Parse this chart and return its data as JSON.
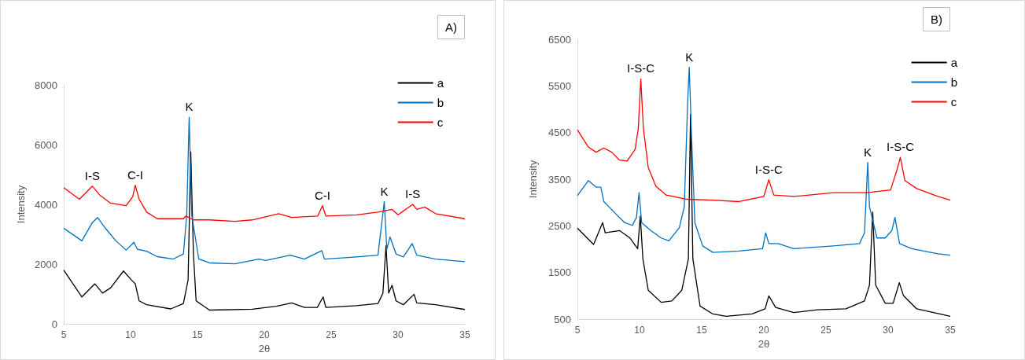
{
  "chart_data": [
    {
      "type": "line",
      "title": "A)",
      "xlabel": "2θ",
      "ylabel": "Intensity",
      "xlim": [
        5,
        35
      ],
      "xticks": [
        5,
        10,
        15,
        20,
        25,
        30,
        35
      ],
      "ylim": [
        0,
        8000
      ],
      "yticks": [
        0,
        2000,
        4000,
        6000,
        8000
      ],
      "legend": "top right",
      "annotations": [
        {
          "text": "I-S",
          "x": 7.14,
          "y": 4610
        },
        {
          "text": "C-I",
          "x": 10.35,
          "y": 4640
        },
        {
          "text": "K",
          "x": 14.38,
          "y": 6920
        },
        {
          "text": "C-I",
          "x": 24.35,
          "y": 3960
        },
        {
          "text": "K",
          "x": 28.97,
          "y": 4090
        },
        {
          "text": "I-S",
          "x": 31.1,
          "y": 4000
        }
      ],
      "series": [
        {
          "name": "a",
          "color": "#000000",
          "x": [
            5,
            6.36,
            7.33,
            7.9,
            8.5,
            9.47,
            10.06,
            10.35,
            10.64,
            11.2,
            13,
            13.95,
            14.3,
            14.5,
            14.7,
            14.9,
            15.9,
            19.1,
            20.9,
            22.05,
            23,
            23.96,
            24.4,
            24.6,
            26.9,
            28.5,
            28.87,
            29.1,
            29.3,
            29.55,
            29.85,
            30.4,
            31.2,
            31.4,
            32.8,
            35
          ],
          "values": [
            1800,
            900,
            1340,
            1030,
            1200,
            1770,
            1470,
            1340,
            770,
            640,
            500,
            680,
            1470,
            5750,
            2340,
            770,
            460,
            490,
            590,
            700,
            550,
            550,
            900,
            550,
            610,
            680,
            1030,
            2620,
            1030,
            1290,
            770,
            640,
            990,
            700,
            640,
            480
          ]
        },
        {
          "name": "b",
          "color": "#0070c0",
          "x": [
            5,
            6.36,
            7.14,
            7.53,
            8.1,
            8.9,
            9.67,
            10.25,
            10.5,
            11.2,
            12,
            13.2,
            13.95,
            14.2,
            14.38,
            14.57,
            15.1,
            15.9,
            17.8,
            19.6,
            20.1,
            21.95,
            23,
            24.3,
            24.5,
            26.9,
            28.5,
            28.97,
            29.16,
            29.4,
            29.85,
            30.4,
            31.05,
            31.4,
            32.8,
            35
          ],
          "values": [
            3200,
            2780,
            3390,
            3560,
            3210,
            2780,
            2470,
            2730,
            2500,
            2430,
            2250,
            2170,
            2340,
            3650,
            6920,
            3650,
            2170,
            2040,
            2010,
            2170,
            2120,
            2300,
            2170,
            2450,
            2170,
            2240,
            2300,
            4090,
            2500,
            2910,
            2340,
            2240,
            2690,
            2300,
            2170,
            2080
          ]
        },
        {
          "name": "c",
          "color": "#ff0000",
          "x": [
            5,
            6.17,
            7.14,
            7.72,
            8.5,
            9.67,
            10.16,
            10.35,
            10.64,
            11.2,
            12,
            13.95,
            14.14,
            14.7,
            15.9,
            17.8,
            19.1,
            21.07,
            22.05,
            24,
            24.35,
            24.6,
            26.9,
            28.5,
            29.55,
            30,
            31.1,
            31.4,
            32,
            32.8,
            35
          ],
          "values": [
            4560,
            4170,
            4610,
            4300,
            4040,
            3960,
            4260,
            4640,
            4170,
            3740,
            3520,
            3520,
            3610,
            3480,
            3480,
            3430,
            3480,
            3690,
            3560,
            3610,
            3960,
            3610,
            3650,
            3740,
            3830,
            3650,
            4000,
            3830,
            3910,
            3690,
            3520
          ]
        }
      ]
    },
    {
      "type": "line",
      "title": "B)",
      "xlabel": "2θ",
      "ylabel": "Intensity",
      "xlim": [
        5,
        35
      ],
      "xticks": [
        5,
        10,
        15,
        20,
        25,
        30,
        35
      ],
      "ylim": [
        500,
        6500
      ],
      "yticks": [
        500,
        1500,
        2500,
        3500,
        4500,
        5500,
        6500
      ],
      "legend": "top right",
      "annotations": [
        {
          "text": "I-S-C",
          "x": 10.1,
          "y": 5650
        },
        {
          "text": "K",
          "x": 14,
          "y": 5900
        },
        {
          "text": "I-S-C",
          "x": 20.4,
          "y": 3490
        },
        {
          "text": "K",
          "x": 28.36,
          "y": 3860
        },
        {
          "text": "I-S-C",
          "x": 30.98,
          "y": 3970
        }
      ],
      "series": [
        {
          "name": "a",
          "color": "#000000",
          "x": [
            5,
            6.3,
            7.03,
            7.24,
            8.39,
            9.23,
            9.85,
            10.06,
            10.27,
            10.7,
            11.74,
            12.6,
            13.4,
            13.93,
            14.1,
            14.29,
            14.87,
            15.9,
            16.97,
            19.06,
            20.1,
            20.4,
            20.95,
            22.4,
            24.3,
            26.6,
            28.1,
            28.5,
            28.76,
            29,
            29.77,
            30.4,
            30.9,
            31.24,
            32.3,
            35
          ],
          "values": [
            2450,
            2100,
            2570,
            2350,
            2400,
            2240,
            2010,
            2710,
            1790,
            1120,
            860,
            890,
            1120,
            1790,
            4890,
            1790,
            780,
            610,
            560,
            610,
            720,
            1000,
            750,
            640,
            700,
            720,
            890,
            1230,
            2800,
            1230,
            840,
            840,
            1280,
            1000,
            720,
            560
          ]
        },
        {
          "name": "b",
          "color": "#0070c0",
          "x": [
            5,
            5.88,
            6.5,
            6.88,
            7.13,
            7.97,
            8.8,
            9.43,
            9.75,
            9.96,
            10.17,
            10.9,
            11.74,
            12.36,
            13.2,
            13.6,
            13.87,
            14,
            14.16,
            14.45,
            15.08,
            15.9,
            18,
            19.9,
            20.15,
            20.4,
            21.15,
            22.4,
            25.6,
            27.7,
            28.1,
            28.36,
            28.5,
            29.1,
            29.77,
            30.3,
            30.55,
            30.92,
            31.9,
            34,
            35
          ],
          "values": [
            3150,
            3470,
            3330,
            3330,
            3020,
            2790,
            2570,
            2510,
            2680,
            3210,
            2570,
            2400,
            2240,
            2180,
            2460,
            2910,
            5150,
            5900,
            4590,
            2570,
            2070,
            1930,
            1960,
            2010,
            2350,
            2120,
            2120,
            2010,
            2070,
            2120,
            2350,
            3860,
            2910,
            2240,
            2240,
            2400,
            2680,
            2120,
            2010,
            1900,
            1870
          ]
        },
        {
          "name": "c",
          "color": "#ff0000",
          "x": [
            5,
            5.88,
            6.5,
            7.13,
            7.76,
            8.39,
            9,
            9.64,
            9.9,
            10.1,
            10.31,
            10.7,
            11.32,
            12.15,
            13.83,
            15.9,
            18,
            20,
            20.4,
            20.8,
            22.4,
            25.6,
            28.3,
            30.2,
            30.7,
            30.98,
            31.35,
            32.3,
            34,
            35
          ],
          "values": [
            4560,
            4190,
            4080,
            4170,
            4080,
            3910,
            3890,
            4140,
            4590,
            5650,
            4590,
            3750,
            3350,
            3160,
            3070,
            3050,
            3020,
            3130,
            3490,
            3160,
            3130,
            3210,
            3210,
            3270,
            3690,
            3970,
            3470,
            3300,
            3130,
            3050
          ]
        }
      ]
    }
  ]
}
